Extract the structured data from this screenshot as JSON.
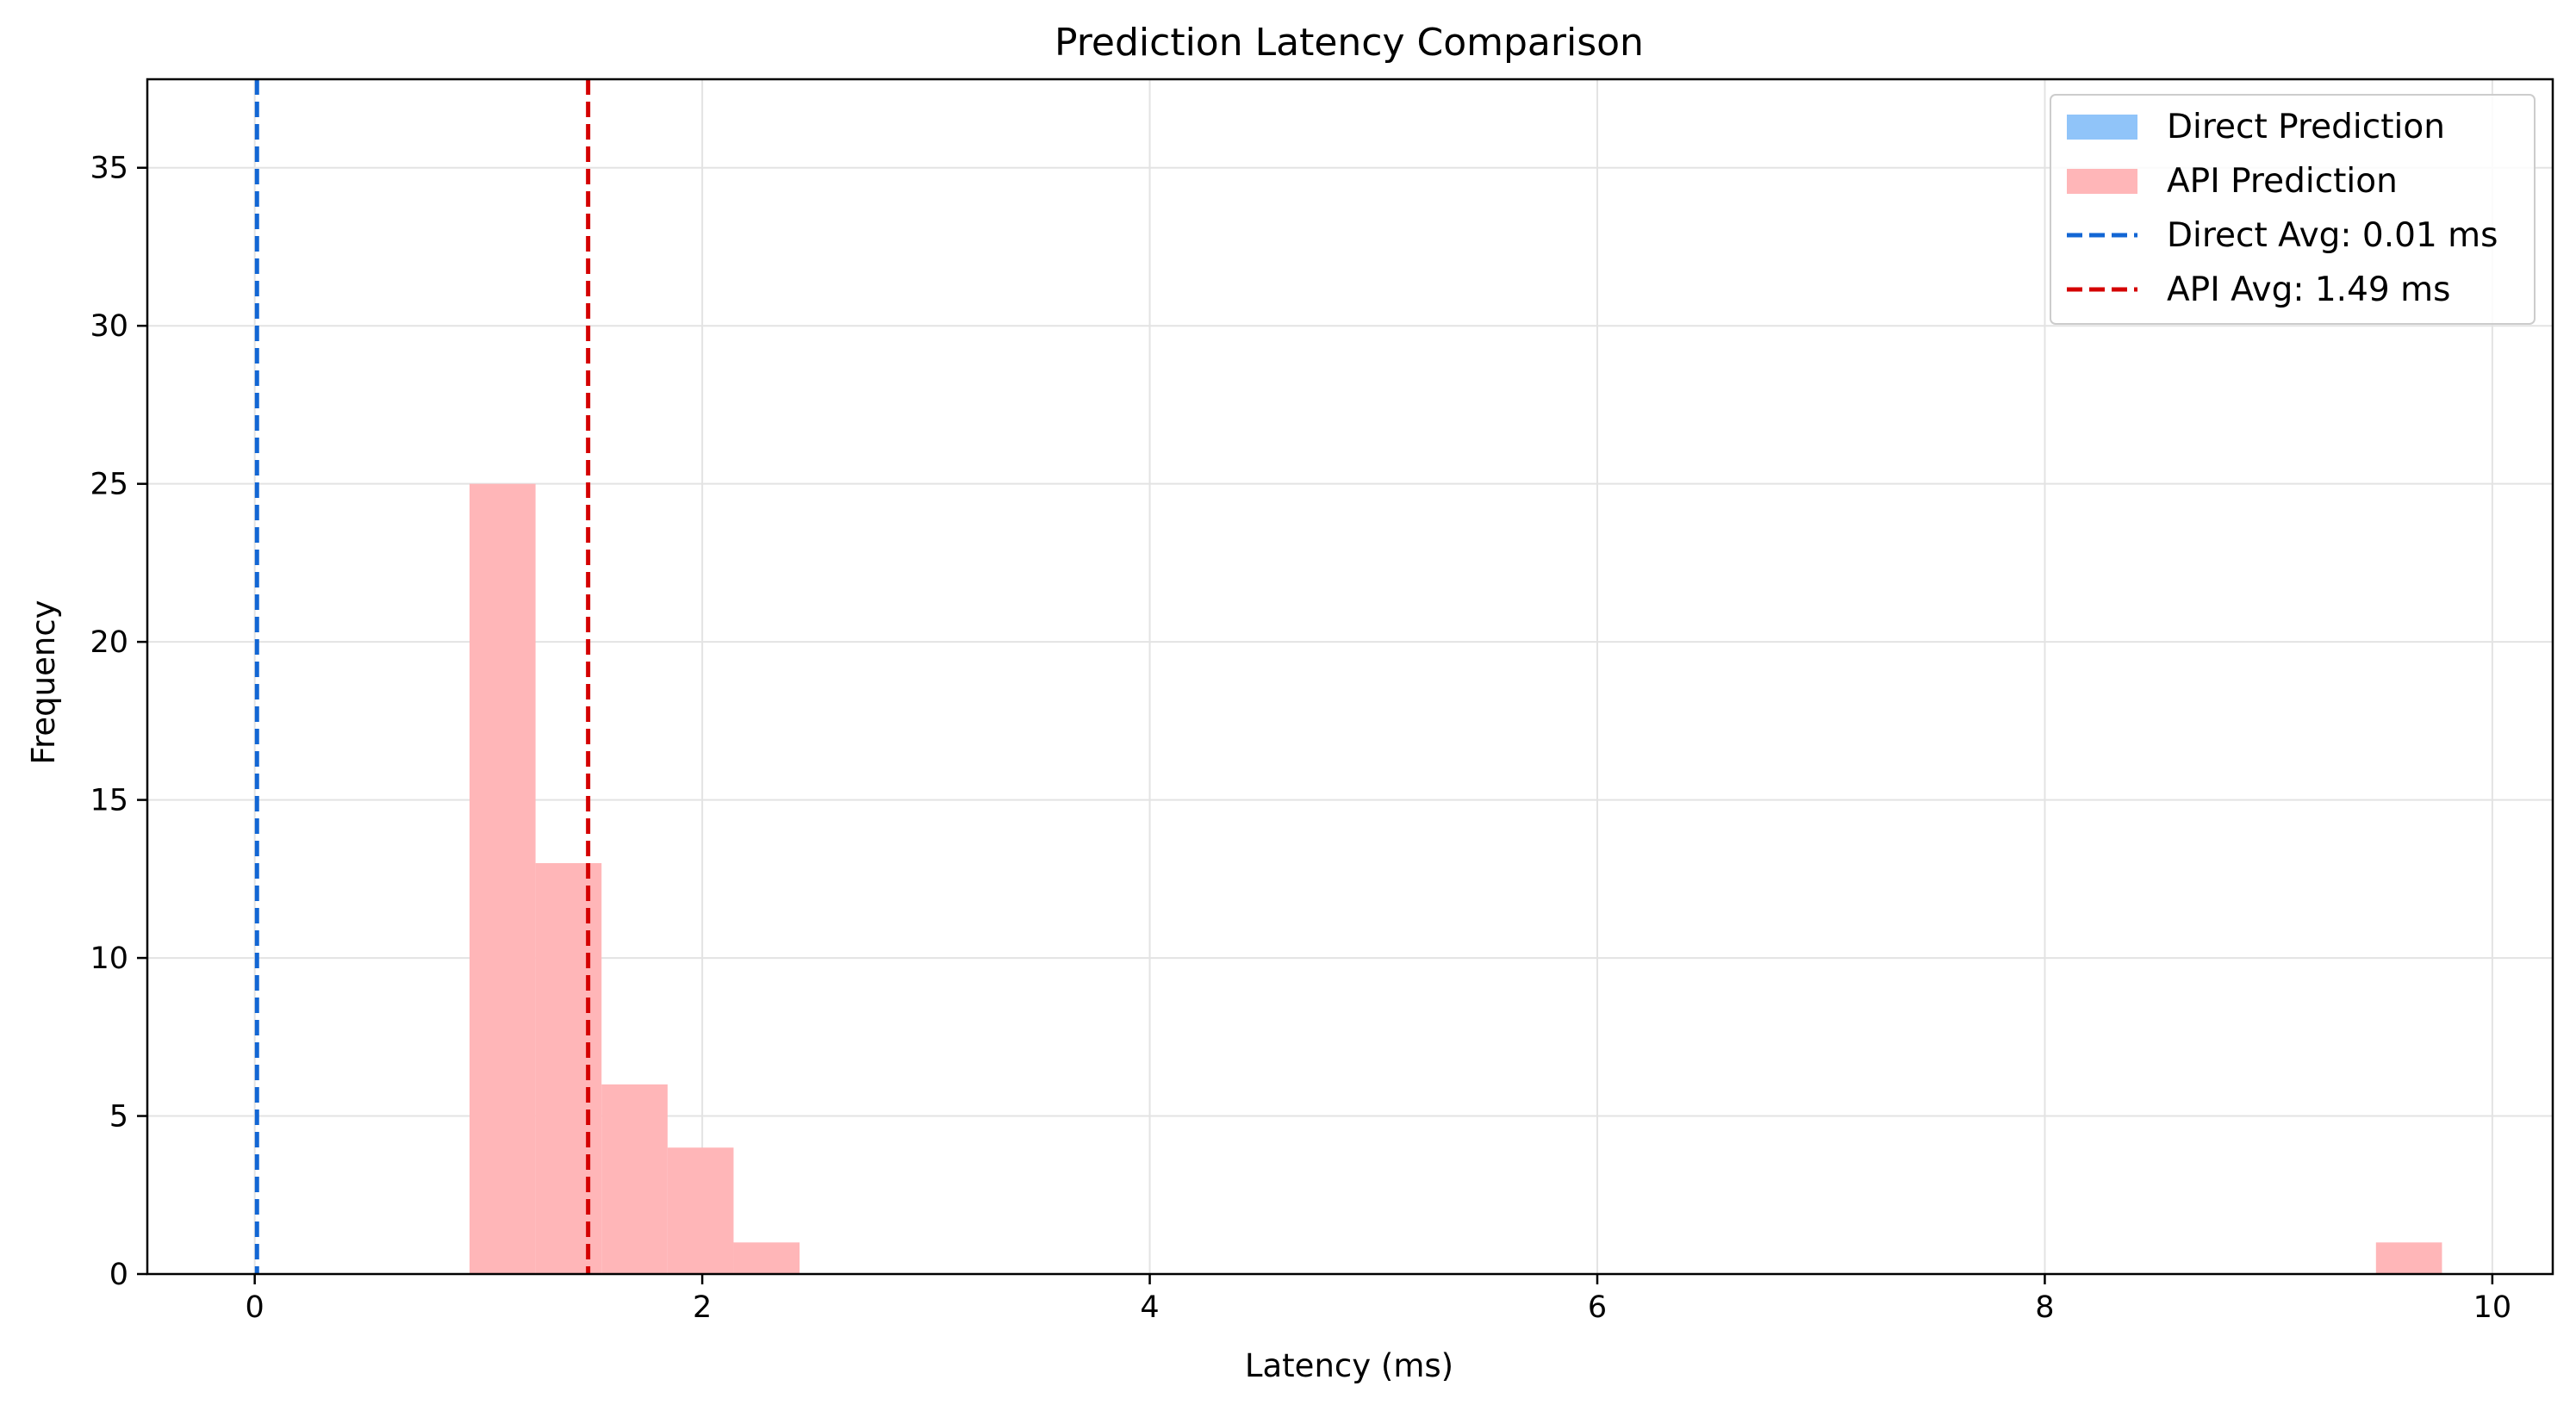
{
  "chart_data": {
    "type": "histogram",
    "title": "Prediction Latency Comparison",
    "xlabel": "Latency (ms)",
    "ylabel": "Frequency",
    "xlim": [
      -0.48,
      10.27
    ],
    "ylim": [
      0,
      37.8
    ],
    "xticks": [
      0,
      2,
      4,
      6,
      8,
      10
    ],
    "yticks": [
      0,
      5,
      10,
      15,
      20,
      25,
      30,
      35
    ],
    "grid": true,
    "legend_position": "top-right",
    "series": [
      {
        "name": "Direct Prediction",
        "kind": "bars",
        "color": "#90c4f9",
        "bins": []
      },
      {
        "name": "API Prediction",
        "kind": "bars",
        "color": "#ffb6b8",
        "bins": [
          {
            "x0": 0.96,
            "x1": 1.255,
            "count": 25
          },
          {
            "x0": 1.255,
            "x1": 1.55,
            "count": 13
          },
          {
            "x0": 1.55,
            "x1": 1.845,
            "count": 6
          },
          {
            "x0": 1.845,
            "x1": 2.14,
            "count": 4
          },
          {
            "x0": 2.14,
            "x1": 2.435,
            "count": 1
          },
          {
            "x0": 9.48,
            "x1": 9.775,
            "count": 1
          }
        ]
      },
      {
        "name": "Direct Avg: 0.01 ms",
        "kind": "vline",
        "x": 0.01,
        "color": "#1266d4"
      },
      {
        "name": "API Avg: 1.49 ms",
        "kind": "vline",
        "x": 1.49,
        "color": "#d40000"
      }
    ]
  }
}
